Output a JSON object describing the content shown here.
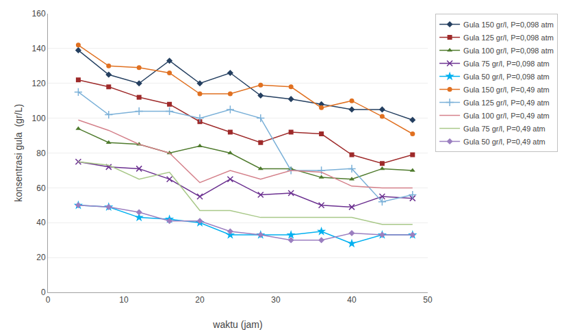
{
  "chart_data": {
    "type": "line",
    "xlabel": "waktu (jam)",
    "ylabel": "konsentrasi gula  (gr/L)",
    "x": [
      4,
      8,
      12,
      16,
      20,
      24,
      28,
      32,
      36,
      40,
      44,
      48
    ],
    "series": [
      {
        "name": "Gula 150 gr/l, P=0,098 atm",
        "color": "#243f60",
        "marker": "diamond",
        "values": [
          139,
          125,
          120,
          133,
          120,
          126,
          113,
          111,
          108,
          105,
          105,
          99
        ]
      },
      {
        "name": "Gula 125 gr/l, P=0,098 atm",
        "color": "#9e2a2a",
        "marker": "square",
        "values": [
          122,
          118,
          112,
          108,
          98,
          92,
          86,
          92,
          91,
          79,
          74,
          79
        ]
      },
      {
        "name": "Gula 100 gr/l, P=0,098 atm",
        "color": "#4e7a2c",
        "marker": "triangle-up",
        "values": [
          94,
          86,
          85,
          80,
          84,
          80,
          71,
          71,
          66,
          65,
          71,
          70
        ]
      },
      {
        "name": "Gula 75 gr/l, P=0,098 atm",
        "color": "#6b3090",
        "marker": "x",
        "values": [
          75,
          72,
          71,
          65,
          55,
          65,
          56,
          57,
          50,
          49,
          55,
          54
        ]
      },
      {
        "name": "Gula 50 gr/l, P=0,098 atm",
        "color": "#00b0f0",
        "marker": "star",
        "values": [
          50,
          49,
          43,
          42,
          40,
          33,
          33,
          33,
          35,
          28,
          33,
          33
        ]
      },
      {
        "name": "Gula 150 gr/l, P=0,49 atm",
        "color": "#e07020",
        "marker": "circle",
        "values": [
          142,
          130,
          129,
          126,
          114,
          114,
          119,
          118,
          106,
          110,
          101,
          91
        ]
      },
      {
        "name": "Gula 125 gr/l, P=0,49 atm",
        "color": "#7ab0d8",
        "marker": "cross",
        "values": [
          115,
          102,
          104,
          104,
          100,
          105,
          100,
          70,
          70,
          71,
          52,
          56
        ]
      },
      {
        "name": "Gula 100 gr/l, P=0,49 atm",
        "color": "#d4808a",
        "marker": "none",
        "values": [
          99,
          93,
          85,
          80,
          63,
          70,
          65,
          70,
          69,
          61,
          60,
          60
        ]
      },
      {
        "name": "Gula 75 gr/l, P=0,49 atm",
        "color": "#a8c888",
        "marker": "none",
        "values": [
          75,
          73,
          65,
          69,
          47,
          47,
          43,
          43,
          43,
          43,
          39,
          39
        ]
      },
      {
        "name": "Gula 50 gr/l, P=0,49 atm",
        "color": "#9b7fc0",
        "marker": "diamond",
        "values": [
          50,
          49,
          46,
          41,
          41,
          35,
          33,
          30,
          30,
          34,
          33,
          33
        ]
      }
    ],
    "xlim": [
      0,
      50
    ],
    "ylim": [
      0,
      160
    ],
    "xticks": [
      0,
      10,
      20,
      30,
      40,
      50
    ],
    "yticks": [
      0,
      20,
      40,
      60,
      80,
      100,
      120,
      140,
      160
    ],
    "grid": "y",
    "legend": "right"
  }
}
